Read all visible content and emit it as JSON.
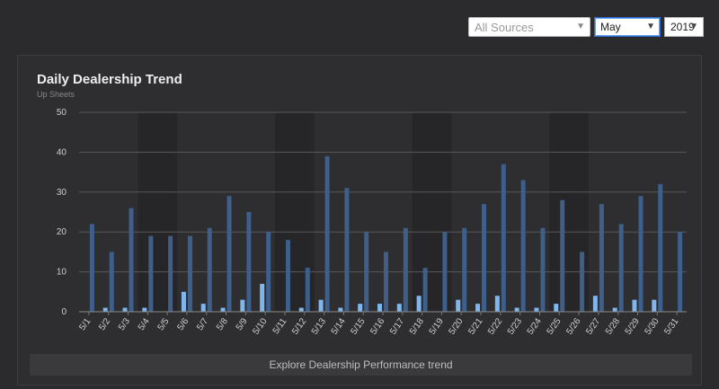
{
  "toolbar": {
    "source_value": "All Sources",
    "month_value": "May",
    "year_value": "2019"
  },
  "explore_label": "Explore Dealership Performance trend",
  "colors": {
    "series_primary": "#3e5f8a",
    "series_secondary": "#7fb6ee",
    "weekend_band": "#262527",
    "grid": "#585858"
  },
  "chart_data": {
    "type": "bar",
    "title": "Daily Dealership Trend",
    "subtitle": "Up Sheets",
    "ylim": [
      0,
      50
    ],
    "yticks": [
      0,
      10,
      20,
      30,
      40,
      50
    ],
    "categories": [
      "5/1",
      "5/2",
      "5/3",
      "5/4",
      "5/5",
      "5/6",
      "5/7",
      "5/8",
      "5/9",
      "5/10",
      "5/11",
      "5/12",
      "5/13",
      "5/14",
      "5/15",
      "5/16",
      "5/17",
      "5/18",
      "5/19",
      "5/20",
      "5/21",
      "5/22",
      "5/23",
      "5/24",
      "5/25",
      "5/26",
      "5/27",
      "5/28",
      "5/29",
      "5/30",
      "5/31"
    ],
    "weekend_bands": [
      [
        "5/4",
        "5/5"
      ],
      [
        "5/11",
        "5/12"
      ],
      [
        "5/18",
        "5/19"
      ],
      [
        "5/25",
        "5/26"
      ]
    ],
    "series": [
      {
        "values": [
          22,
          15,
          26,
          19,
          19,
          19,
          21,
          29,
          25,
          20,
          18,
          11,
          39,
          31,
          20,
          15,
          21,
          11,
          20,
          21,
          27,
          37,
          33,
          21,
          28,
          15,
          27,
          22,
          29,
          32,
          20
        ]
      },
      {
        "values": [
          0,
          1,
          1,
          1,
          0,
          5,
          2,
          1,
          3,
          7,
          0,
          1,
          3,
          1,
          2,
          2,
          2,
          4,
          0,
          3,
          2,
          4,
          1,
          1,
          2,
          0,
          4,
          1,
          3,
          3,
          0
        ]
      }
    ]
  }
}
